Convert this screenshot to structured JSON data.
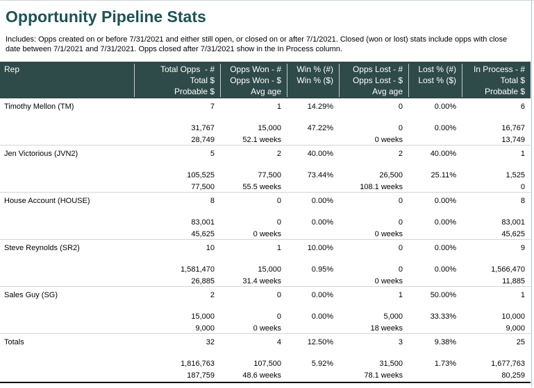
{
  "page": {
    "title": "Opportunity Pipeline Stats",
    "subtitle": "Includes: Opps created on or before 7/31/2021 and either still open, or closed on or after 7/1/2021. Closed (won or lost) stats include opps with close date between 7/1/2021 and 7/31/2021.  Opps closed after 7/31/2021 show in the In Process column."
  },
  "colors": {
    "title_text": "#1d5355",
    "header_bg": "#2e4a49",
    "header_text": "#ffffff"
  },
  "table": {
    "header": [
      {
        "lines": [
          "Rep",
          "",
          ""
        ]
      },
      {
        "lines": [
          "Total Opps  - #",
          "Total $",
          "Probable $"
        ]
      },
      {
        "lines": [
          "Opps Won - #",
          "Opps Won - $",
          "Avg age"
        ]
      },
      {
        "lines": [
          "Win % (#)",
          "Win % ($)",
          ""
        ]
      },
      {
        "lines": [
          "Opps Lost - #",
          "Opps Lost - $",
          "Avg age"
        ]
      },
      {
        "lines": [
          "Lost % (#)",
          "Lost % ($)",
          ""
        ]
      },
      {
        "lines": [
          "In Process - #",
          "Total $",
          "Probable $"
        ]
      }
    ],
    "rows": [
      {
        "rep": "Timothy Mellon (TM)",
        "cells": [
          [
            "7",
            "31,767",
            "28,749"
          ],
          [
            "1",
            "15,000",
            "52.1 weeks"
          ],
          [
            "14.29%",
            "47.22%",
            ""
          ],
          [
            "0",
            "0",
            "0 weeks"
          ],
          [
            "0.00%",
            "0.00%",
            ""
          ],
          [
            "6",
            "16,767",
            "13,749"
          ]
        ]
      },
      {
        "rep": "Jen Victorious (JVN2)",
        "cells": [
          [
            "5",
            "105,525",
            "77,500"
          ],
          [
            "2",
            "77,500",
            "55.5 weeks"
          ],
          [
            "40.00%",
            "73.44%",
            ""
          ],
          [
            "2",
            "26,500",
            "108.1 weeks"
          ],
          [
            "40.00%",
            "25.11%",
            ""
          ],
          [
            "1",
            "1,525",
            "0"
          ]
        ]
      },
      {
        "rep": "House Account (HOUSE)",
        "cells": [
          [
            "8",
            "83,001",
            "45,625"
          ],
          [
            "0",
            "0",
            "0 weeks"
          ],
          [
            "0.00%",
            "0.00%",
            ""
          ],
          [
            "0",
            "0",
            "0 weeks"
          ],
          [
            "0.00%",
            "0.00%",
            ""
          ],
          [
            "8",
            "83,001",
            "45,625"
          ]
        ]
      },
      {
        "rep": "Steve Reynolds (SR2)",
        "cells": [
          [
            "10",
            "1,581,470",
            "26,885"
          ],
          [
            "1",
            "15,000",
            "31.4 weeks"
          ],
          [
            "10.00%",
            "0.95%",
            ""
          ],
          [
            "0",
            "0",
            "0 weeks"
          ],
          [
            "0.00%",
            "0.00%",
            ""
          ],
          [
            "9",
            "1,566,470",
            "11,885"
          ]
        ]
      },
      {
        "rep": "Sales Guy (SG)",
        "cells": [
          [
            "2",
            "15,000",
            "9,000"
          ],
          [
            "0",
            "0",
            "0 weeks"
          ],
          [
            "0.00%",
            "0.00%",
            ""
          ],
          [
            "1",
            "5,000",
            "18 weeks"
          ],
          [
            "50.00%",
            "33.33%",
            ""
          ],
          [
            "1",
            "10,000",
            "9,000"
          ]
        ]
      },
      {
        "rep": "Totals",
        "cells": [
          [
            "32",
            "1,816,763",
            "187,759"
          ],
          [
            "4",
            "107,500",
            "48.6 weeks"
          ],
          [
            "12.50%",
            "5.92%",
            ""
          ],
          [
            "3",
            "31,500",
            "78.1 weeks"
          ],
          [
            "9.38%",
            "1.73%",
            ""
          ],
          [
            "25",
            "1,677,763",
            "80,259"
          ]
        ]
      }
    ]
  }
}
